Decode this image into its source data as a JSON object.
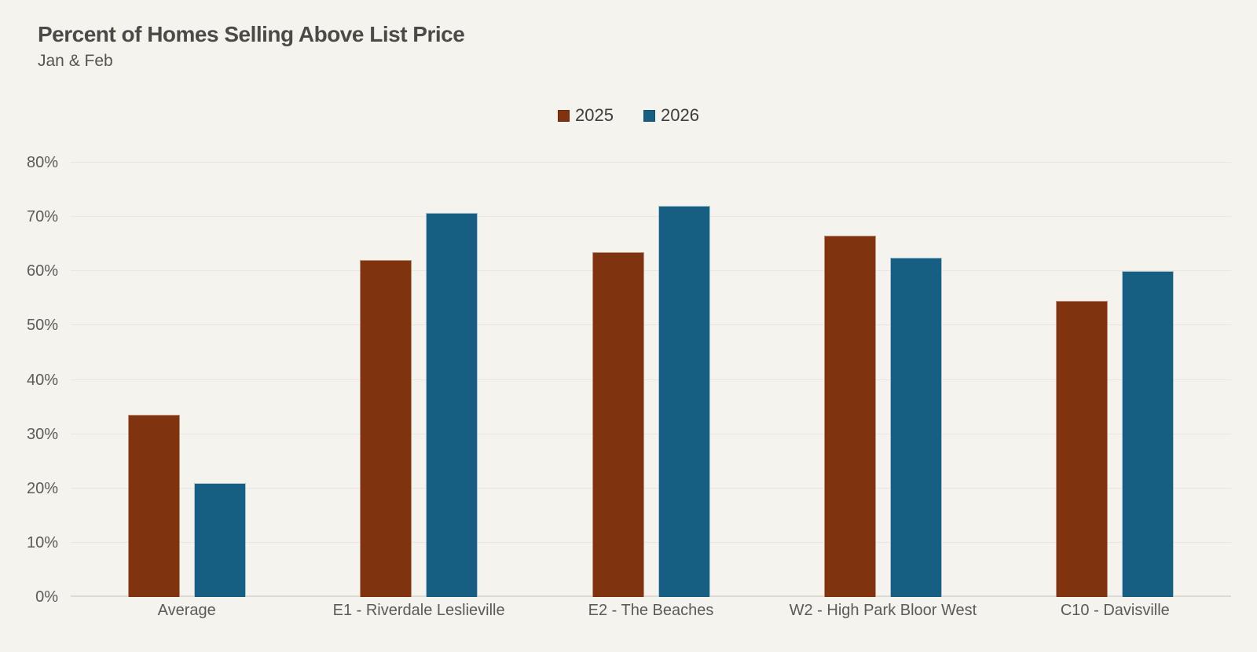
{
  "header": {
    "title": "Percent of Homes Selling Above List Price",
    "subtitle": "Jan & Feb"
  },
  "colors": {
    "background": "#F5F3EE",
    "gridline": "#E9E6E0",
    "baseline": "#DDDAD3",
    "title_text": "#4B4A48",
    "axis_text": "#5B5A58",
    "series_2025": "#7F330F",
    "series_2026": "#175E83"
  },
  "chart_data": {
    "type": "bar",
    "title": "Percent of Homes Selling Above List Price",
    "subtitle": "Jan & Feb",
    "categories": [
      "Average",
      "E1 - Riverdale Leslieville",
      "E2 - The Beaches",
      "W2 - High Park Bloor West",
      "C10 - Davisville"
    ],
    "series": [
      {
        "name": "2025",
        "color": "#7F330F",
        "border_color": "#C2907A",
        "swatch_border": "#6E2408",
        "values": [
          33.5,
          62,
          63.5,
          66.5,
          54.5
        ]
      },
      {
        "name": "2026",
        "color": "#175E83",
        "border_color": "#A9C3D0",
        "swatch_border": "#12506E",
        "values": [
          21,
          70.8,
          72,
          62.5,
          60
        ]
      }
    ],
    "ylim": [
      0,
      80
    ],
    "ytick_step": 10,
    "ytick_labels": [
      "0%",
      "10%",
      "20%",
      "30%",
      "40%",
      "50%",
      "60%",
      "70%",
      "80%"
    ],
    "grid": true,
    "legend_position": "top-center",
    "xlabel": "",
    "ylabel": ""
  }
}
